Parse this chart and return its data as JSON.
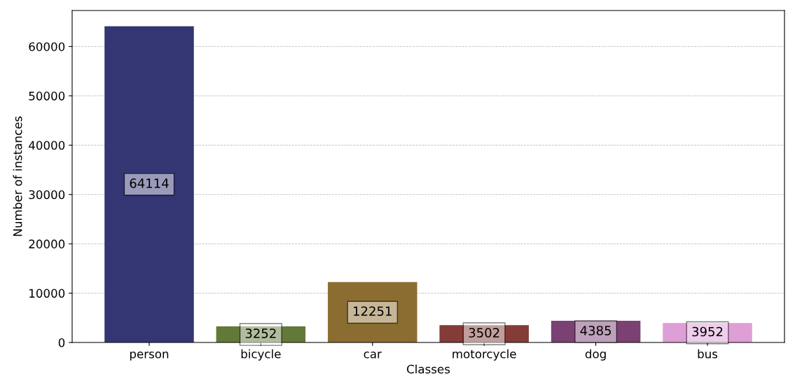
{
  "chart_data": {
    "type": "bar",
    "xlabel": "Classes",
    "ylabel": "Number of instances",
    "categories": [
      "person",
      "bicycle",
      "car",
      "motorcycle",
      "dog",
      "bus"
    ],
    "values": [
      64114,
      3252,
      12251,
      3502,
      4385,
      3952
    ],
    "colors": [
      "#343673",
      "#637939",
      "#8c6d31",
      "#843c39",
      "#7b4173",
      "#de9ed6"
    ],
    "ylim": [
      0,
      67300
    ],
    "yticks": [
      0,
      10000,
      20000,
      30000,
      40000,
      50000,
      60000
    ],
    "grid": "y",
    "data_labels": true
  }
}
